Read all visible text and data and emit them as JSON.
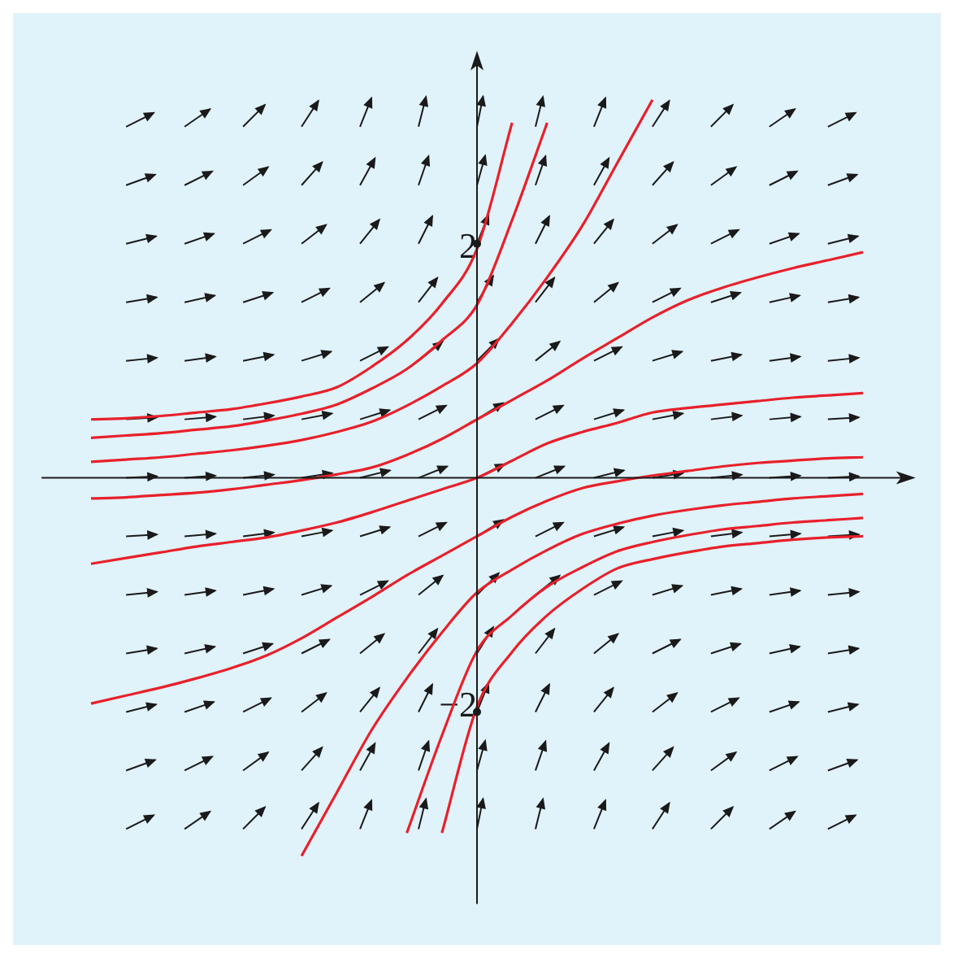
{
  "chart_data": {
    "type": "line",
    "categories": [
      null,
      null,
      null,
      null,
      null,
      null,
      null,
      null,
      null,
      null,
      null,
      null,
      null,
      null,
      null,
      null,
      null,
      null,
      null,
      null,
      null,
      null,
      null
    ],
    "ylim": [
      -3.72,
      3.7
    ],
    "yticks": [
      {
        "value": 2,
        "label": "2"
      },
      {
        "value": -2,
        "label": "−2"
      }
    ],
    "tick_labels": "y",
    "grid": false,
    "legend": false,
    "marker": "none",
    "line_style": "solid",
    "series": [
      {
        "color": "#e8202a",
        "values": [
          0.51,
          0.52,
          0.54,
          0.57,
          0.6,
          0.65,
          0.71,
          0.79,
          0.97,
          1.2,
          1.52,
          2,
          3.1,
          null,
          null,
          null,
          null,
          null,
          null,
          null,
          null,
          null,
          null
        ]
      },
      {
        "color": "#e8202a",
        "values": [
          0.35,
          0.37,
          0.39,
          0.42,
          0.45,
          0.5,
          0.56,
          0.64,
          0.78,
          0.95,
          1.2,
          1.51,
          2.25,
          3.1,
          null,
          null,
          null,
          null,
          null,
          null,
          null,
          null,
          null
        ]
      },
      {
        "color": "#e8202a",
        "values": [
          0.14,
          0.16,
          0.18,
          0.21,
          0.24,
          0.28,
          0.33,
          0.4,
          0.49,
          0.63,
          0.8,
          1,
          1.35,
          1.75,
          2.2,
          2.75,
          3.3,
          null,
          null,
          null,
          null,
          null,
          null
        ]
      },
      {
        "color": "#e8202a",
        "values": [
          -0.18,
          -0.17,
          -0.15,
          -0.13,
          -0.1,
          -0.06,
          -0.02,
          0.03,
          0.09,
          0.2,
          0.34,
          0.51,
          0.68,
          0.85,
          1.04,
          1.22,
          1.4,
          1.55,
          1.66,
          1.75,
          1.83,
          1.9,
          1.97
        ]
      },
      {
        "color": "#e8202a",
        "values": [
          -0.75,
          -0.7,
          -0.65,
          -0.6,
          -0.56,
          -0.52,
          -0.46,
          -0.39,
          -0.3,
          -0.2,
          -0.1,
          0,
          0.15,
          0.3,
          0.4,
          0.48,
          0.57,
          0.61,
          0.64,
          0.67,
          0.7,
          0.72,
          0.74
        ]
      },
      {
        "color": "#e8202a",
        "values": [
          -1.97,
          -1.9,
          -1.83,
          -1.75,
          -1.66,
          -1.55,
          -1.4,
          -1.22,
          -1.04,
          -0.85,
          -0.68,
          -0.51,
          -0.34,
          -0.2,
          -0.09,
          -0.03,
          0.02,
          0.06,
          0.1,
          0.13,
          0.15,
          0.17,
          0.18
        ]
      },
      {
        "color": "#e8202a",
        "values": [
          null,
          null,
          null,
          null,
          null,
          null,
          -3.3,
          -2.75,
          -2.2,
          -1.75,
          -1.35,
          -1,
          -0.8,
          -0.63,
          -0.49,
          -0.4,
          -0.33,
          -0.28,
          -0.24,
          -0.21,
          -0.18,
          -0.16,
          -0.14
        ]
      },
      {
        "color": "#e8202a",
        "values": [
          null,
          null,
          null,
          null,
          null,
          null,
          null,
          null,
          null,
          -3.1,
          -2.25,
          -1.51,
          -1.2,
          -0.95,
          -0.78,
          -0.64,
          -0.56,
          -0.5,
          -0.45,
          -0.42,
          -0.39,
          -0.37,
          -0.35
        ]
      },
      {
        "color": "#e8202a",
        "values": [
          null,
          null,
          null,
          null,
          null,
          null,
          null,
          null,
          null,
          null,
          -3.1,
          -2,
          -1.52,
          -1.2,
          -0.97,
          -0.79,
          -0.71,
          -0.65,
          -0.6,
          -0.57,
          -0.54,
          -0.52,
          -0.51
        ]
      }
    ]
  }
}
